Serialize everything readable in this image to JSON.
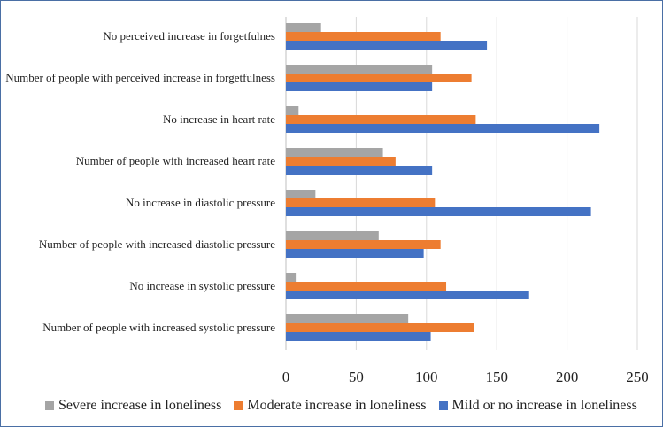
{
  "chart_data": {
    "type": "bar",
    "orientation": "horizontal",
    "title": "",
    "xlabel": "",
    "ylabel": "",
    "xlim": [
      0,
      250
    ],
    "xticks": [
      0,
      50,
      100,
      150,
      200,
      250
    ],
    "grid": true,
    "legend_position": "bottom",
    "categories": [
      "No perceived increase in forgetfulnes",
      "Number of people with perceived increase in forgetfulness",
      "No increase in heart rate",
      "Number of people with increased heart rate",
      "No increase in diastolic pressure",
      "Number of people with increased diastolic pressure",
      "No increase in systolic pressure",
      "Number of people with increased systolic pressure"
    ],
    "series": [
      {
        "name": "Severe increase in loneliness",
        "color": "#a5a5a5",
        "values": [
          25,
          104,
          9,
          69,
          21,
          66,
          7,
          87
        ]
      },
      {
        "name": "Moderate increase in loneliness",
        "color": "#ed7d31",
        "values": [
          110,
          132,
          135,
          78,
          106,
          110,
          114,
          134
        ]
      },
      {
        "name": "Mild or no increase in loneliness",
        "color": "#4472c4",
        "values": [
          143,
          104,
          223,
          104,
          217,
          98,
          173,
          103
        ]
      }
    ]
  }
}
